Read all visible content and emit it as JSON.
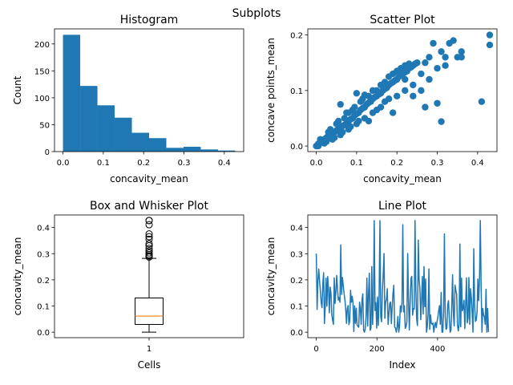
{
  "suptitle": "Subplots",
  "colors": {
    "primary": "#1f77b4",
    "median": "#ff7f0e",
    "axis": "#000000",
    "background": "#ffffff"
  },
  "chart_data": [
    {
      "type": "bar",
      "subtype": "histogram",
      "title": "Histogram",
      "xlabel": "concavity_mean",
      "ylabel": "Count",
      "bins": [
        {
          "x0": 0.0,
          "x1": 0.0427,
          "count": 217
        },
        {
          "x0": 0.0427,
          "x1": 0.0854,
          "count": 122
        },
        {
          "x0": 0.0854,
          "x1": 0.1281,
          "count": 86
        },
        {
          "x0": 0.1281,
          "x1": 0.1708,
          "count": 63
        },
        {
          "x0": 0.1708,
          "x1": 0.2135,
          "count": 35
        },
        {
          "x0": 0.2135,
          "x1": 0.2562,
          "count": 25
        },
        {
          "x0": 0.2562,
          "x1": 0.2989,
          "count": 7
        },
        {
          "x0": 0.2989,
          "x1": 0.3416,
          "count": 9
        },
        {
          "x0": 0.3416,
          "x1": 0.3843,
          "count": 4
        },
        {
          "x0": 0.3843,
          "x1": 0.427,
          "count": 2
        }
      ],
      "xlim": [
        -0.021,
        0.448
      ],
      "ylim": [
        0,
        228
      ],
      "xticks": [
        0.0,
        0.1,
        0.2,
        0.3,
        0.4
      ],
      "xtick_labels": [
        "0.0",
        "0.1",
        "0.2",
        "0.3",
        "0.4"
      ],
      "yticks": [
        0,
        50,
        100,
        150,
        200
      ],
      "ytick_labels": [
        "0",
        "50",
        "100",
        "150",
        "200"
      ],
      "grid": false
    },
    {
      "type": "scatter",
      "title": "Scatter Plot",
      "xlabel": "concavity_mean",
      "ylabel": "concave points_mean",
      "points": [
        [
          0.0,
          0.0
        ],
        [
          0.005,
          0.004
        ],
        [
          0.01,
          0.006
        ],
        [
          0.015,
          0.01
        ],
        [
          0.02,
          0.012
        ],
        [
          0.025,
          0.015
        ],
        [
          0.03,
          0.018
        ],
        [
          0.035,
          0.02
        ],
        [
          0.04,
          0.022
        ],
        [
          0.045,
          0.025
        ],
        [
          0.05,
          0.028
        ],
        [
          0.055,
          0.03
        ],
        [
          0.06,
          0.033
        ],
        [
          0.065,
          0.036
        ],
        [
          0.07,
          0.038
        ],
        [
          0.075,
          0.04
        ],
        [
          0.08,
          0.045
        ],
        [
          0.085,
          0.048
        ],
        [
          0.09,
          0.05
        ],
        [
          0.095,
          0.055
        ],
        [
          0.1,
          0.058
        ],
        [
          0.105,
          0.06
        ],
        [
          0.11,
          0.065
        ],
        [
          0.115,
          0.068
        ],
        [
          0.12,
          0.07
        ],
        [
          0.125,
          0.075
        ],
        [
          0.13,
          0.078
        ],
        [
          0.135,
          0.08
        ],
        [
          0.14,
          0.085
        ],
        [
          0.145,
          0.088
        ],
        [
          0.15,
          0.09
        ],
        [
          0.155,
          0.093
        ],
        [
          0.16,
          0.095
        ],
        [
          0.165,
          0.1
        ],
        [
          0.17,
          0.103
        ],
        [
          0.175,
          0.105
        ],
        [
          0.18,
          0.11
        ],
        [
          0.185,
          0.113
        ],
        [
          0.19,
          0.115
        ],
        [
          0.195,
          0.118
        ],
        [
          0.2,
          0.12
        ],
        [
          0.205,
          0.125
        ],
        [
          0.21,
          0.128
        ],
        [
          0.215,
          0.13
        ],
        [
          0.22,
          0.133
        ],
        [
          0.225,
          0.135
        ],
        [
          0.23,
          0.14
        ],
        [
          0.235,
          0.142
        ],
        [
          0.24,
          0.145
        ],
        [
          0.245,
          0.148
        ],
        [
          0.25,
          0.15
        ],
        [
          0.01,
          0.012
        ],
        [
          0.02,
          0.005
        ],
        [
          0.03,
          0.025
        ],
        [
          0.04,
          0.012
        ],
        [
          0.05,
          0.04
        ],
        [
          0.06,
          0.02
        ],
        [
          0.07,
          0.05
        ],
        [
          0.08,
          0.03
        ],
        [
          0.09,
          0.065
        ],
        [
          0.1,
          0.04
        ],
        [
          0.11,
          0.08
        ],
        [
          0.12,
          0.05
        ],
        [
          0.13,
          0.09
        ],
        [
          0.14,
          0.06
        ],
        [
          0.15,
          0.1
        ],
        [
          0.16,
          0.07
        ],
        [
          0.17,
          0.115
        ],
        [
          0.18,
          0.085
        ],
        [
          0.19,
          0.13
        ],
        [
          0.2,
          0.09
        ],
        [
          0.21,
          0.14
        ],
        [
          0.22,
          0.1
        ],
        [
          0.23,
          0.148
        ],
        [
          0.24,
          0.11
        ],
        [
          0.06,
          0.075
        ],
        [
          0.08,
          0.06
        ],
        [
          0.1,
          0.095
        ],
        [
          0.13,
          0.045
        ],
        [
          0.15,
          0.065
        ],
        [
          0.17,
          0.08
        ],
        [
          0.19,
          0.06
        ],
        [
          0.22,
          0.12
        ],
        [
          0.24,
          0.09
        ],
        [
          0.26,
          0.13
        ],
        [
          0.27,
          0.15
        ],
        [
          0.28,
          0.12
        ],
        [
          0.28,
          0.16
        ],
        [
          0.29,
          0.185
        ],
        [
          0.3,
          0.14
        ],
        [
          0.3,
          0.077
        ],
        [
          0.31,
          0.17
        ],
        [
          0.31,
          0.044
        ],
        [
          0.32,
          0.145
        ],
        [
          0.32,
          0.16
        ],
        [
          0.33,
          0.185
        ],
        [
          0.34,
          0.19
        ],
        [
          0.35,
          0.16
        ],
        [
          0.36,
          0.17
        ],
        [
          0.36,
          0.16
        ],
        [
          0.41,
          0.08
        ],
        [
          0.43,
          0.2
        ],
        [
          0.43,
          0.182
        ],
        [
          0.26,
          0.1
        ],
        [
          0.27,
          0.07
        ],
        [
          0.12,
          0.092
        ],
        [
          0.14,
          0.1
        ],
        [
          0.16,
          0.11
        ],
        [
          0.18,
          0.125
        ],
        [
          0.2,
          0.135
        ],
        [
          0.22,
          0.145
        ],
        [
          0.005,
          0.0
        ],
        [
          0.015,
          0.008
        ],
        [
          0.025,
          0.008
        ],
        [
          0.035,
          0.03
        ],
        [
          0.045,
          0.015
        ],
        [
          0.055,
          0.045
        ],
        [
          0.065,
          0.025
        ],
        [
          0.075,
          0.06
        ],
        [
          0.085,
          0.035
        ],
        [
          0.095,
          0.07
        ],
        [
          0.105,
          0.045
        ],
        [
          0.115,
          0.085
        ]
      ],
      "xlim": [
        -0.021,
        0.448
      ],
      "ylim": [
        -0.01,
        0.211
      ],
      "xticks": [
        0.0,
        0.1,
        0.2,
        0.3,
        0.4
      ],
      "xtick_labels": [
        "0.0",
        "0.1",
        "0.2",
        "0.3",
        "0.4"
      ],
      "yticks": [
        0.0,
        0.1,
        0.2
      ],
      "ytick_labels": [
        "0.0",
        "0.1",
        "0.2"
      ],
      "grid": false
    },
    {
      "type": "box",
      "title": "Box and Whisker Plot",
      "xlabel": "Cells",
      "ylabel": "concavity_mean",
      "category": "1",
      "min": 0.0,
      "q1": 0.0296,
      "median": 0.0615,
      "q3": 0.1307,
      "whisker_high": 0.2819,
      "outliers": [
        0.2871,
        0.291,
        0.296,
        0.303,
        0.311,
        0.32,
        0.33,
        0.338,
        0.355,
        0.365,
        0.3754,
        0.4108,
        0.4264,
        0.4268
      ],
      "ylim": [
        -0.021,
        0.448
      ],
      "yticks": [
        0.0,
        0.1,
        0.2,
        0.3,
        0.4
      ],
      "ytick_labels": [
        "0.0",
        "0.1",
        "0.2",
        "0.3",
        "0.4"
      ],
      "grid": false
    },
    {
      "type": "line",
      "title": "Line Plot",
      "xlabel": "Index",
      "ylabel": "concavity_mean",
      "x_range": [
        0,
        568
      ],
      "values": [
        0.3001,
        0.0869,
        0.1974,
        0.2414,
        0.198,
        0.1578,
        0.1127,
        0.09366,
        0.1859,
        0.2273,
        0.03299,
        0.09954,
        0.2065,
        0.09938,
        0.2128,
        0.1639,
        0.07395,
        0.1722,
        0.1479,
        0.06664,
        0.04568,
        0.02956,
        0.2077,
        0.1097,
        0.1525,
        0.2167,
        0.1657,
        0.1226,
        0.1324,
        0.1144,
        0.3339,
        0.1441,
        0.209,
        0.1799,
        0.1482,
        0.1267,
        0.0911,
        0.03344,
        0.09017,
        0.1016,
        0.02875,
        0.04257,
        0.1601,
        0.1145,
        0.1374,
        0.1128,
        0.00194,
        0.1003,
        0.03383,
        0.09182,
        0.02685,
        0.02272,
        0.01883,
        0.1147,
        0.09061,
        0.03021,
        0.1229,
        0.1466,
        0.006829,
        0.0,
        0.01339,
        0.05999,
        0.2065,
        0.02332,
        0.1465,
        0.2254,
        0.006872,
        0.01546,
        0.2508,
        0.02954,
        0.1169,
        0.4264,
        0.08302,
        0.1136,
        0.01562,
        0.1347,
        0.02662,
        0.1366,
        0.4264,
        0.05985,
        0.03974,
        0.1588,
        0.2197,
        0.3003,
        0.05253,
        0.1138,
        0.1264,
        0.1658,
        0.02987,
        0.0692,
        0.1093,
        0.1154,
        0.03271,
        0.09398,
        0.1482,
        0.1791,
        0.01938,
        0.0165,
        0.0,
        0.01971,
        0.06021,
        0.0,
        0.02036,
        0.1006,
        0.07741,
        0.1111,
        0.4108,
        0.07741,
        0.1003,
        0.01477,
        0.0204,
        0.04038,
        0.3003,
        0.1232,
        0.008306,
        0.1129,
        0.2051,
        0.2135,
        0.06505,
        0.09042,
        0.08814,
        0.4268,
        0.1599,
        0.05051,
        0.02583,
        0.3523,
        0.2012,
        0.1639,
        0.04755,
        0.1226,
        0.2133,
        0.06945,
        0.2508,
        0.09724,
        0.2032,
        0.0,
        0.02031,
        0.07055,
        0.2417,
        0.01095,
        0.06576,
        0.0338,
        0.02975,
        0.03508,
        0.0,
        0.02447,
        0.03711,
        0.01721,
        0.04151,
        0.05736,
        0.08333,
        0.1016,
        0.03021,
        0.1517,
        0.0,
        0.0,
        0.07741,
        0.3754,
        0.05999,
        0.01123,
        0.01512,
        0.1045,
        0.1204,
        0.05375,
        0.0,
        0.006829,
        0.1005,
        0.2197,
        0.06737,
        0.02398,
        0.1799,
        0.1594,
        0.1466,
        0.02772,
        0.004967,
        0.02953,
        0.3368,
        0.02048,
        0.2071,
        0.08175,
        0.09042,
        0.1218,
        0.01342,
        0.1044,
        0.2079,
        0.03581,
        0.05253,
        0.2088,
        0.02985,
        0.1662,
        0.1339,
        0.07026,
        0.0,
        0.3189,
        0.1036,
        0.04151,
        0.04568,
        0.07741,
        0.2032,
        0.1204,
        0.2012,
        0.4268,
        0.1722,
        0.0,
        0.09042,
        0.06737,
        0.05736,
        0.02987,
        0.1639,
        0.0,
        0.09042,
        0.0
      ],
      "xticks": [
        0,
        200,
        400
      ],
      "xtick_labels": [
        "0",
        "200",
        "400"
      ],
      "xlim": [
        -28,
        596
      ],
      "ylim": [
        -0.021,
        0.448
      ],
      "yticks": [
        0.0,
        0.1,
        0.2,
        0.3,
        0.4
      ],
      "ytick_labels": [
        "0.0",
        "0.1",
        "0.2",
        "0.3",
        "0.4"
      ],
      "grid": false
    }
  ]
}
